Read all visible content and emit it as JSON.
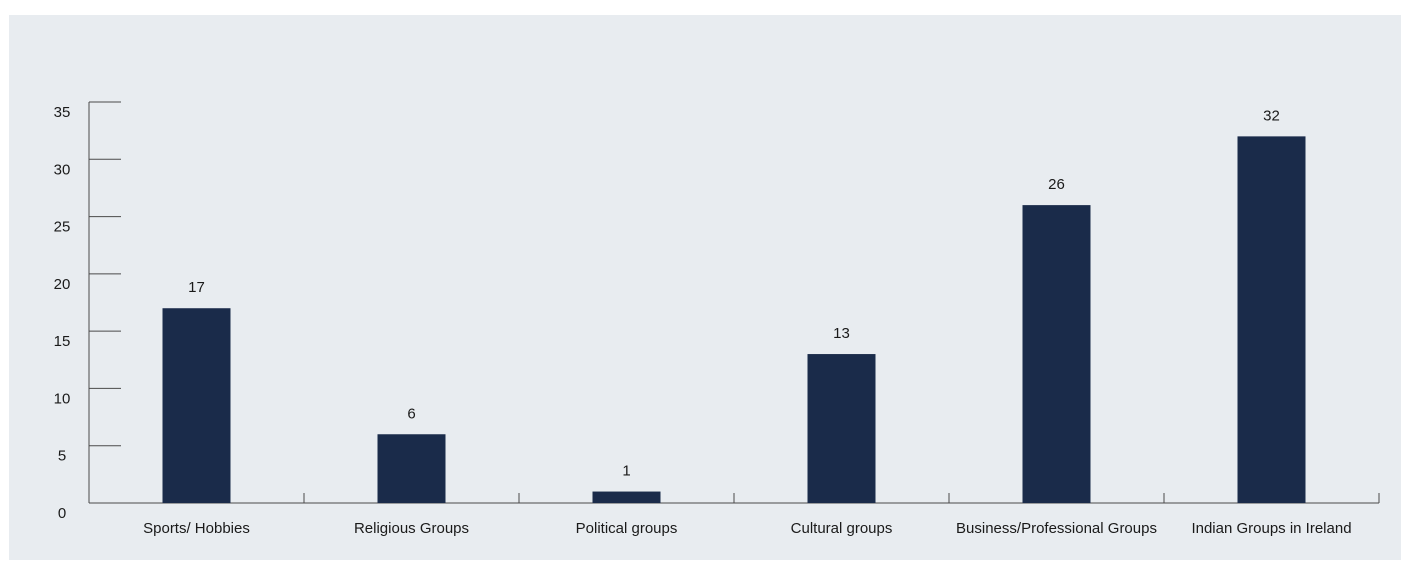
{
  "colors": {
    "bar": "#1a2b4a",
    "axis": "#4a4a4a",
    "background": "#e8ecf0"
  },
  "chart_data": {
    "type": "bar",
    "title": "",
    "xlabel": "",
    "ylabel": "",
    "categories": [
      "Sports/ Hobbies",
      "Religious Groups",
      "Political groups",
      "Cultural groups",
      "Business/Professional Groups",
      "Indian Groups in Ireland"
    ],
    "values": [
      17,
      6,
      1,
      13,
      26,
      32
    ],
    "data_labels": [
      "17",
      "6",
      "1",
      "13",
      "26",
      "32"
    ],
    "ylim": [
      0,
      35
    ],
    "yticks": [
      0,
      5,
      10,
      15,
      20,
      25,
      30,
      35
    ],
    "ytick_labels": [
      "0",
      "5",
      "10",
      "15",
      "20",
      "25",
      "30",
      "35"
    ],
    "grid": false,
    "legend": "none"
  }
}
